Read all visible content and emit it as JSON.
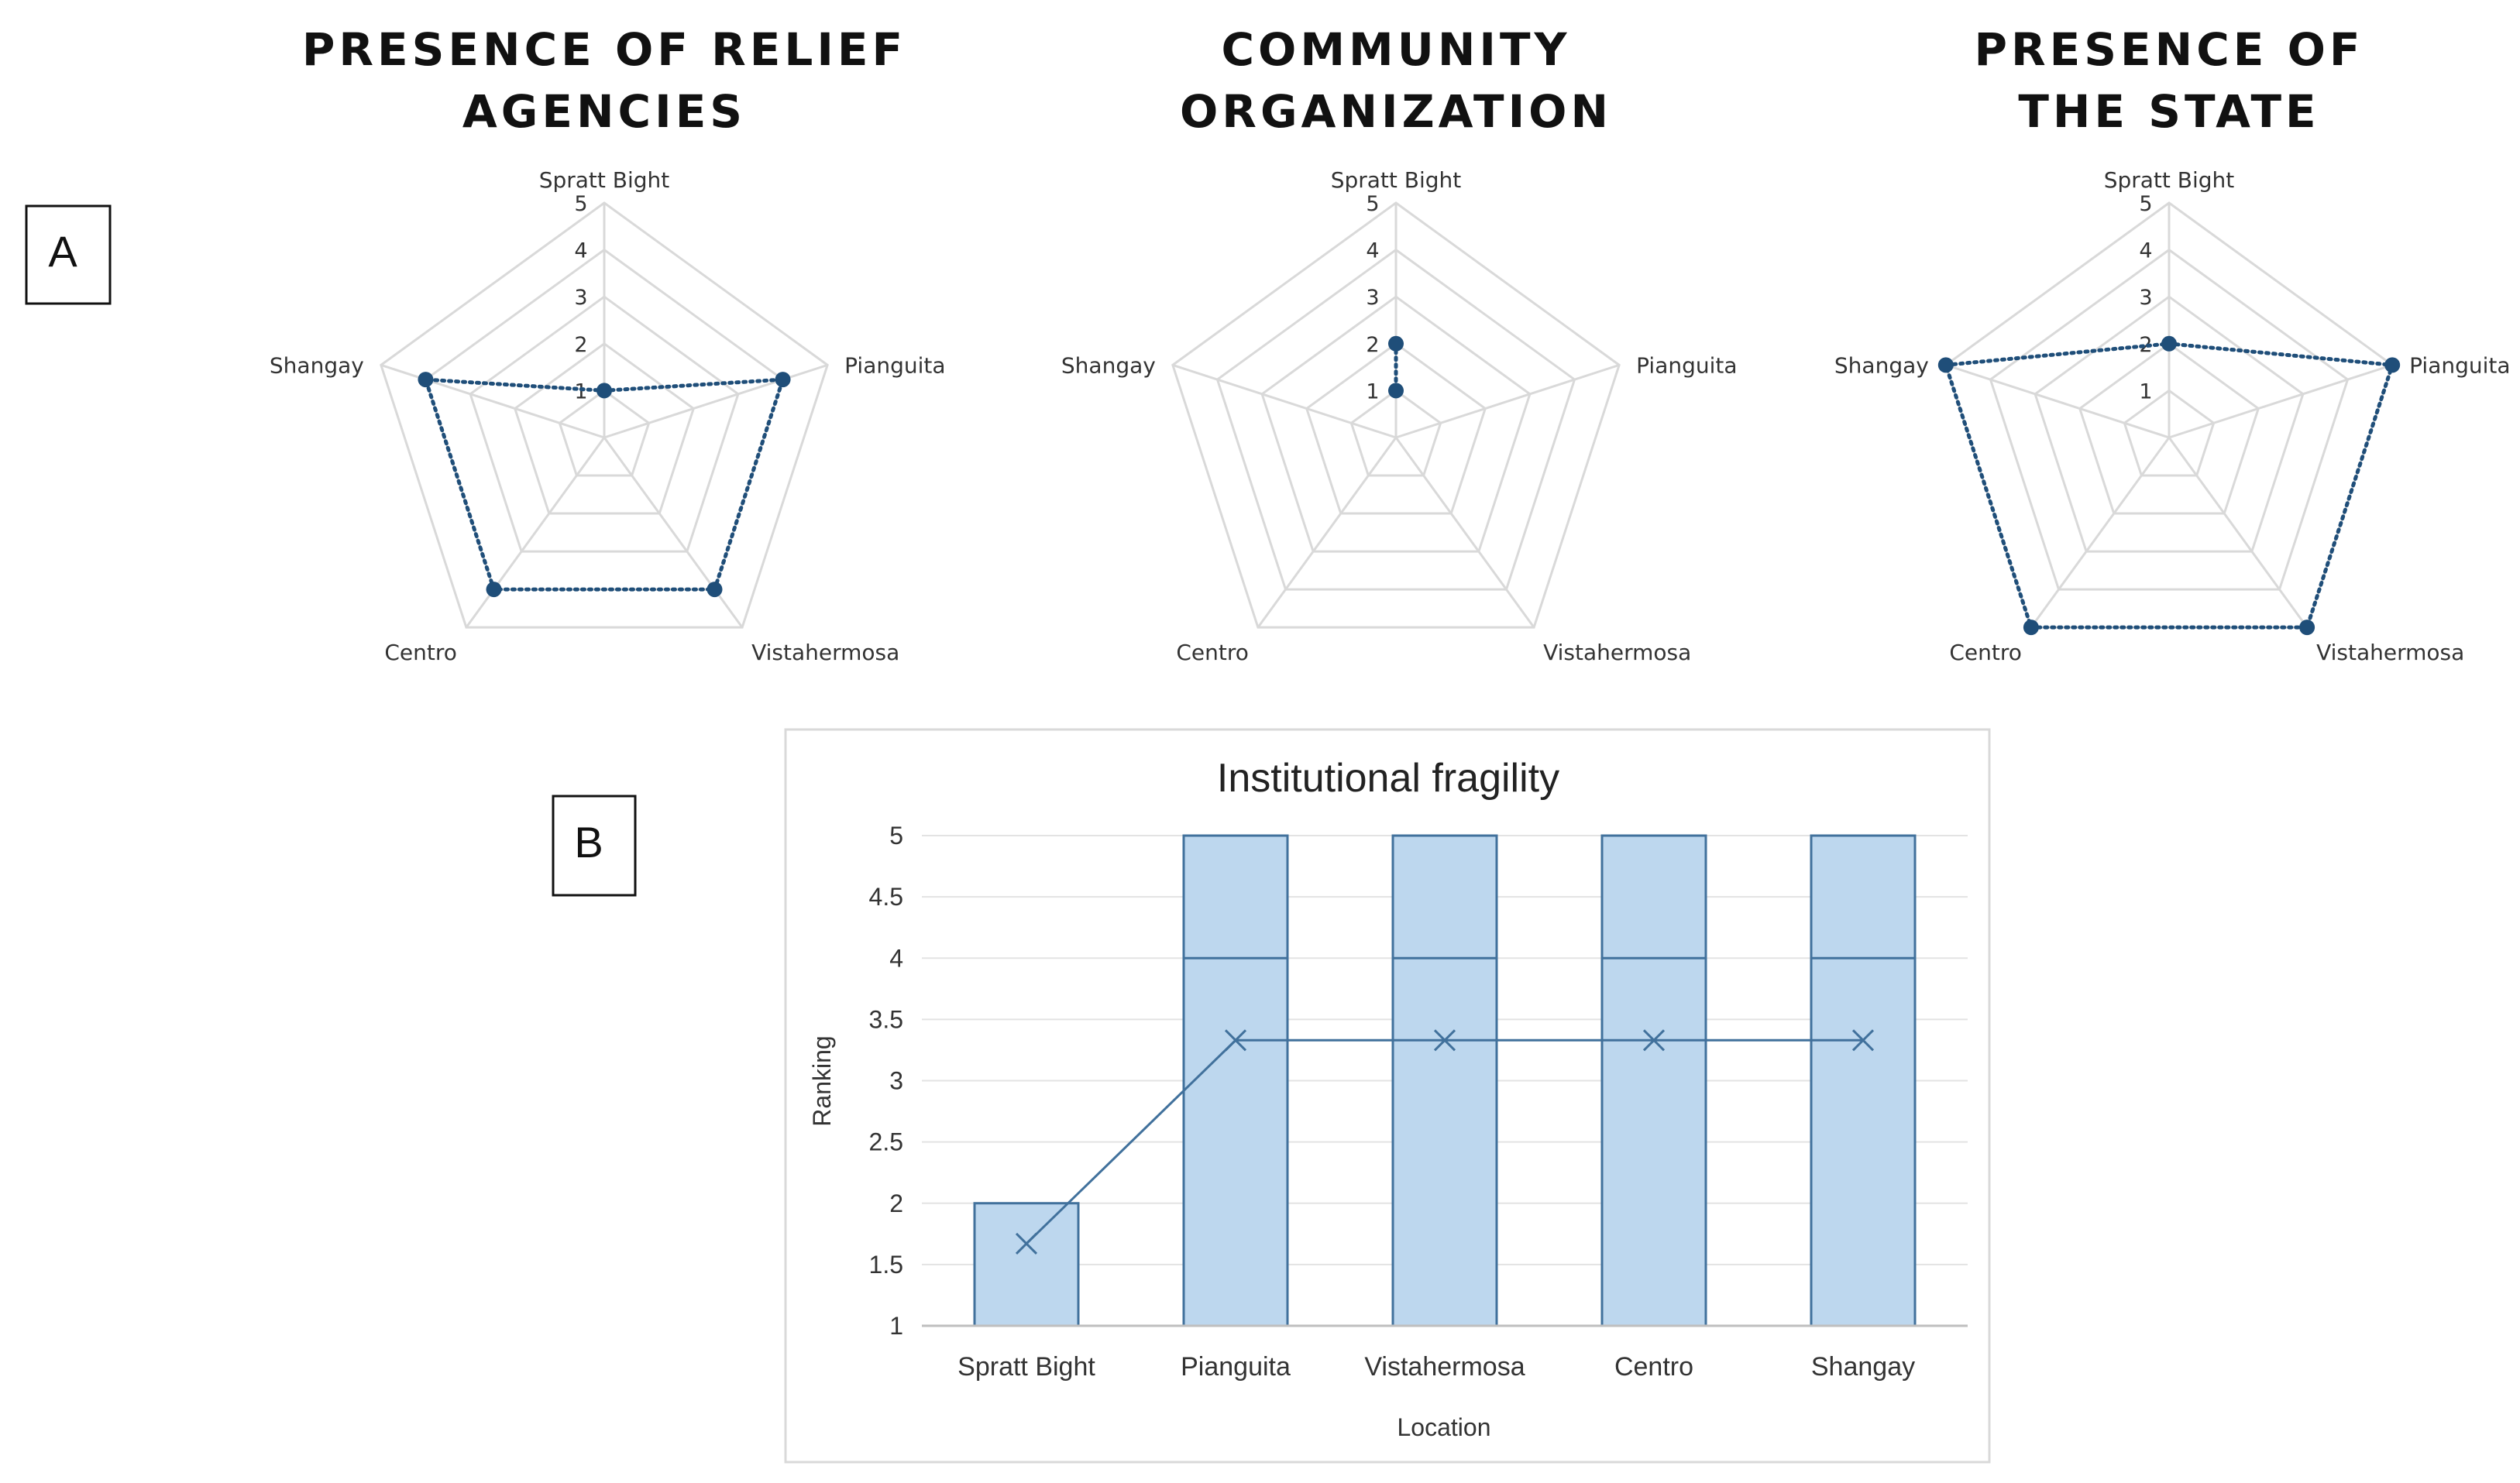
{
  "panel_labels": {
    "a": "A",
    "b": "B"
  },
  "colors": {
    "series": "#1f4e79",
    "grid": "#d9d9d9",
    "bar_fill": "#bdd7ee",
    "bar_stroke": "#41719c",
    "line": "#41719c"
  },
  "chart_data": [
    {
      "type": "radar",
      "title_lines": [
        "PRESENCE OF RELIEF",
        "AGENCIES"
      ],
      "axes": [
        "Spratt Bight",
        "Pianguita",
        "Vistahermosa",
        "Centro",
        "Shangay"
      ],
      "range": [
        0,
        5
      ],
      "ring_labels": [
        "1",
        "2",
        "3",
        "4",
        "5"
      ],
      "values": [
        1,
        4,
        4,
        4,
        4
      ]
    },
    {
      "type": "radar",
      "title_lines": [
        "COMMUNITY",
        "ORGANIZATION"
      ],
      "axes": [
        "Spratt Bight",
        "Pianguita",
        "Vistahermosa",
        "Centro",
        "Shangay"
      ],
      "range": [
        0,
        5
      ],
      "ring_labels": [
        "1",
        "2",
        "3",
        "4",
        "5"
      ],
      "values": [
        2,
        0,
        0,
        0,
        0
      ],
      "point_values": [
        2,
        1
      ]
    },
    {
      "type": "radar",
      "title_lines": [
        "PRESENCE OF",
        "THE STATE"
      ],
      "axes": [
        "Spratt Bight",
        "Pianguita",
        "Vistahermosa",
        "Centro",
        "Shangay"
      ],
      "range": [
        0,
        5
      ],
      "ring_labels": [
        "1",
        "2",
        "3",
        "4",
        "5"
      ],
      "values": [
        2,
        5,
        5,
        5,
        5
      ]
    },
    {
      "type": "bar",
      "title": "Institutional fragility",
      "xlabel": "Location",
      "ylabel": "Ranking",
      "categories": [
        "Spratt Bight",
        "Pianguita",
        "Vistahermosa",
        "Centro",
        "Shangay"
      ],
      "ylim": [
        1,
        5
      ],
      "yticks": [
        "1",
        "1.5",
        "2",
        "2.5",
        "3",
        "3.5",
        "4",
        "4.5",
        "5"
      ],
      "bar_top": [
        2,
        5,
        5,
        5,
        5
      ],
      "inner_line": [
        null,
        4,
        4,
        4,
        4
      ],
      "mean_line": [
        1.67,
        3.33,
        3.33,
        3.33,
        3.33
      ]
    }
  ]
}
